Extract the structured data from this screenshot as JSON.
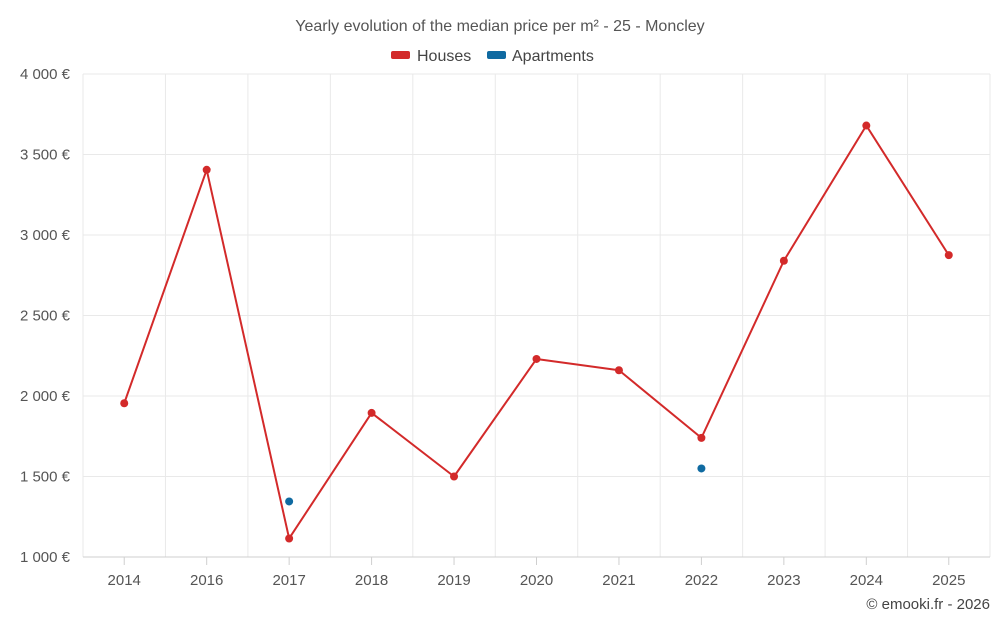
{
  "chart_data": {
    "type": "line",
    "title": "Yearly evolution of the median price per m² - 25 - Moncley",
    "categories": [
      "2014",
      "2016",
      "2017",
      "2018",
      "2019",
      "2020",
      "2021",
      "2022",
      "2023",
      "2024",
      "2025"
    ],
    "series": [
      {
        "name": "Houses",
        "color": "#d32a2a",
        "values": [
          1955,
          3405,
          1115,
          1895,
          1500,
          2230,
          2160,
          1740,
          2840,
          3680,
          2875
        ]
      },
      {
        "name": "Apartments",
        "color": "#0f6aa1",
        "values": [
          null,
          null,
          1345,
          null,
          null,
          null,
          null,
          1550,
          null,
          null,
          null
        ]
      }
    ],
    "ylim": [
      1000,
      4000
    ],
    "yticks": [
      1000,
      1500,
      2000,
      2500,
      3000,
      3500,
      4000
    ],
    "ytick_labels": [
      "1 000 €",
      "1 500 €",
      "2 000 €",
      "2 500 €",
      "3 000 €",
      "3 500 €",
      "4 000 €"
    ],
    "xlabel": "",
    "ylabel": "",
    "grid": true,
    "legend_position": "top-center"
  },
  "credit": "© emooki.fr - 2026"
}
